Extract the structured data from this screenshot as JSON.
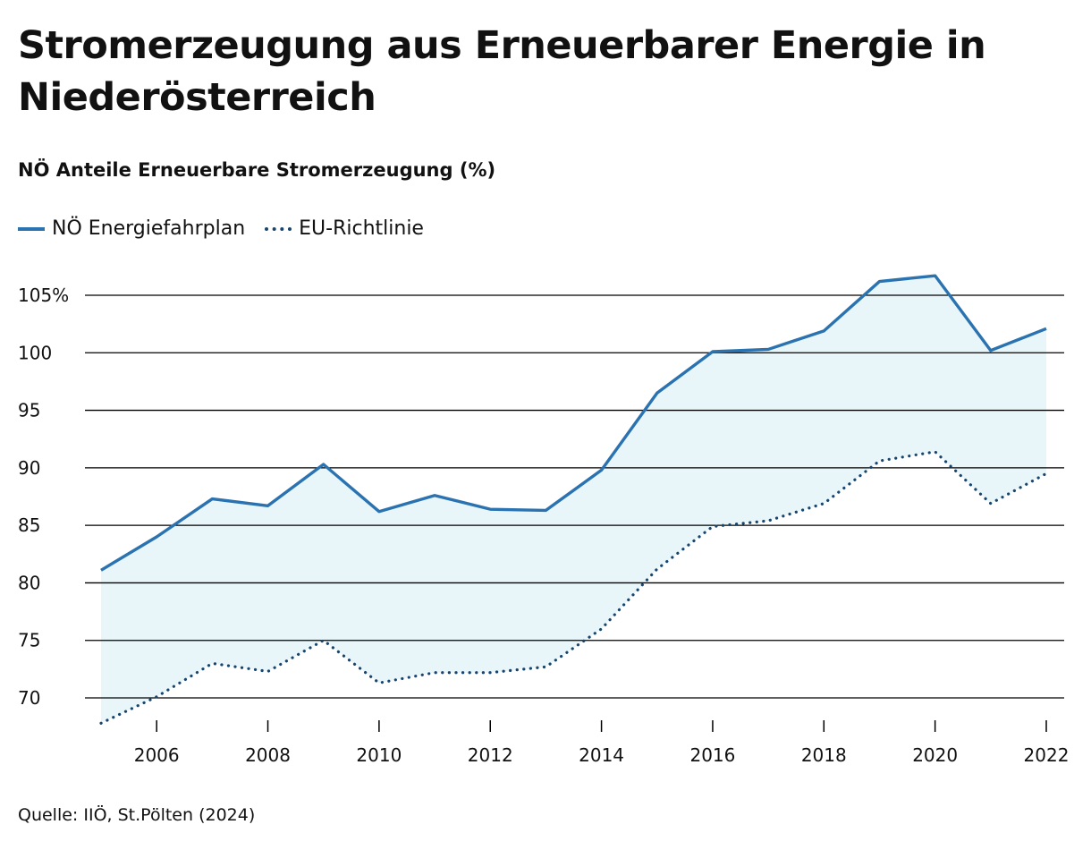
{
  "title": "Stromerzeugung aus Erneuerbarer Energie in Niederösterreich",
  "subtitle": "NÖ Anteile Erneuerbare Stromerzeugung (%)",
  "source": "Quelle: IIÖ, St.Pölten (2024)",
  "colors": {
    "series1": "#2b73b0",
    "series2": "#17456f",
    "area_fill": "#e8f6fa",
    "grid": "#000000"
  },
  "chart_data": {
    "type": "line",
    "title": "Stromerzeugung aus Erneuerbarer Energie in Niederösterreich",
    "subtitle": "NÖ Anteile Erneuerbare Stromerzeugung (%)",
    "x": [
      2005,
      2006,
      2007,
      2008,
      2009,
      2010,
      2011,
      2012,
      2013,
      2014,
      2015,
      2016,
      2017,
      2018,
      2019,
      2020,
      2021,
      2022
    ],
    "series": [
      {
        "name": "NÖ Energiefahrplan",
        "style": "solid",
        "values": [
          81.1,
          84.0,
          87.3,
          86.7,
          90.3,
          86.2,
          87.6,
          86.4,
          86.3,
          89.8,
          96.5,
          100.1,
          100.3,
          101.9,
          106.2,
          106.7,
          100.2,
          102.1
        ]
      },
      {
        "name": "EU-Richtlinie",
        "style": "dotted",
        "values": [
          67.8,
          70.1,
          73.0,
          72.3,
          75.0,
          71.3,
          72.2,
          72.2,
          72.7,
          76.0,
          81.2,
          84.9,
          85.4,
          86.9,
          90.6,
          91.4,
          86.9,
          89.5
        ]
      }
    ],
    "ylim": [
      68,
      106.5
    ],
    "yticks": [
      70,
      75,
      80,
      85,
      90,
      95,
      100,
      105
    ],
    "ytick_labels": [
      "70",
      "75",
      "80",
      "85",
      "90",
      "95",
      "100",
      "105%"
    ],
    "xticks": [
      2006,
      2008,
      2010,
      2012,
      2014,
      2016,
      2018,
      2020,
      2022
    ],
    "xtick_labels": [
      "2006",
      "2008",
      "2010",
      "2012",
      "2014",
      "2016",
      "2018",
      "2020",
      "2022"
    ],
    "grid": true,
    "legend_position": "top-left",
    "area_between_series": true
  }
}
